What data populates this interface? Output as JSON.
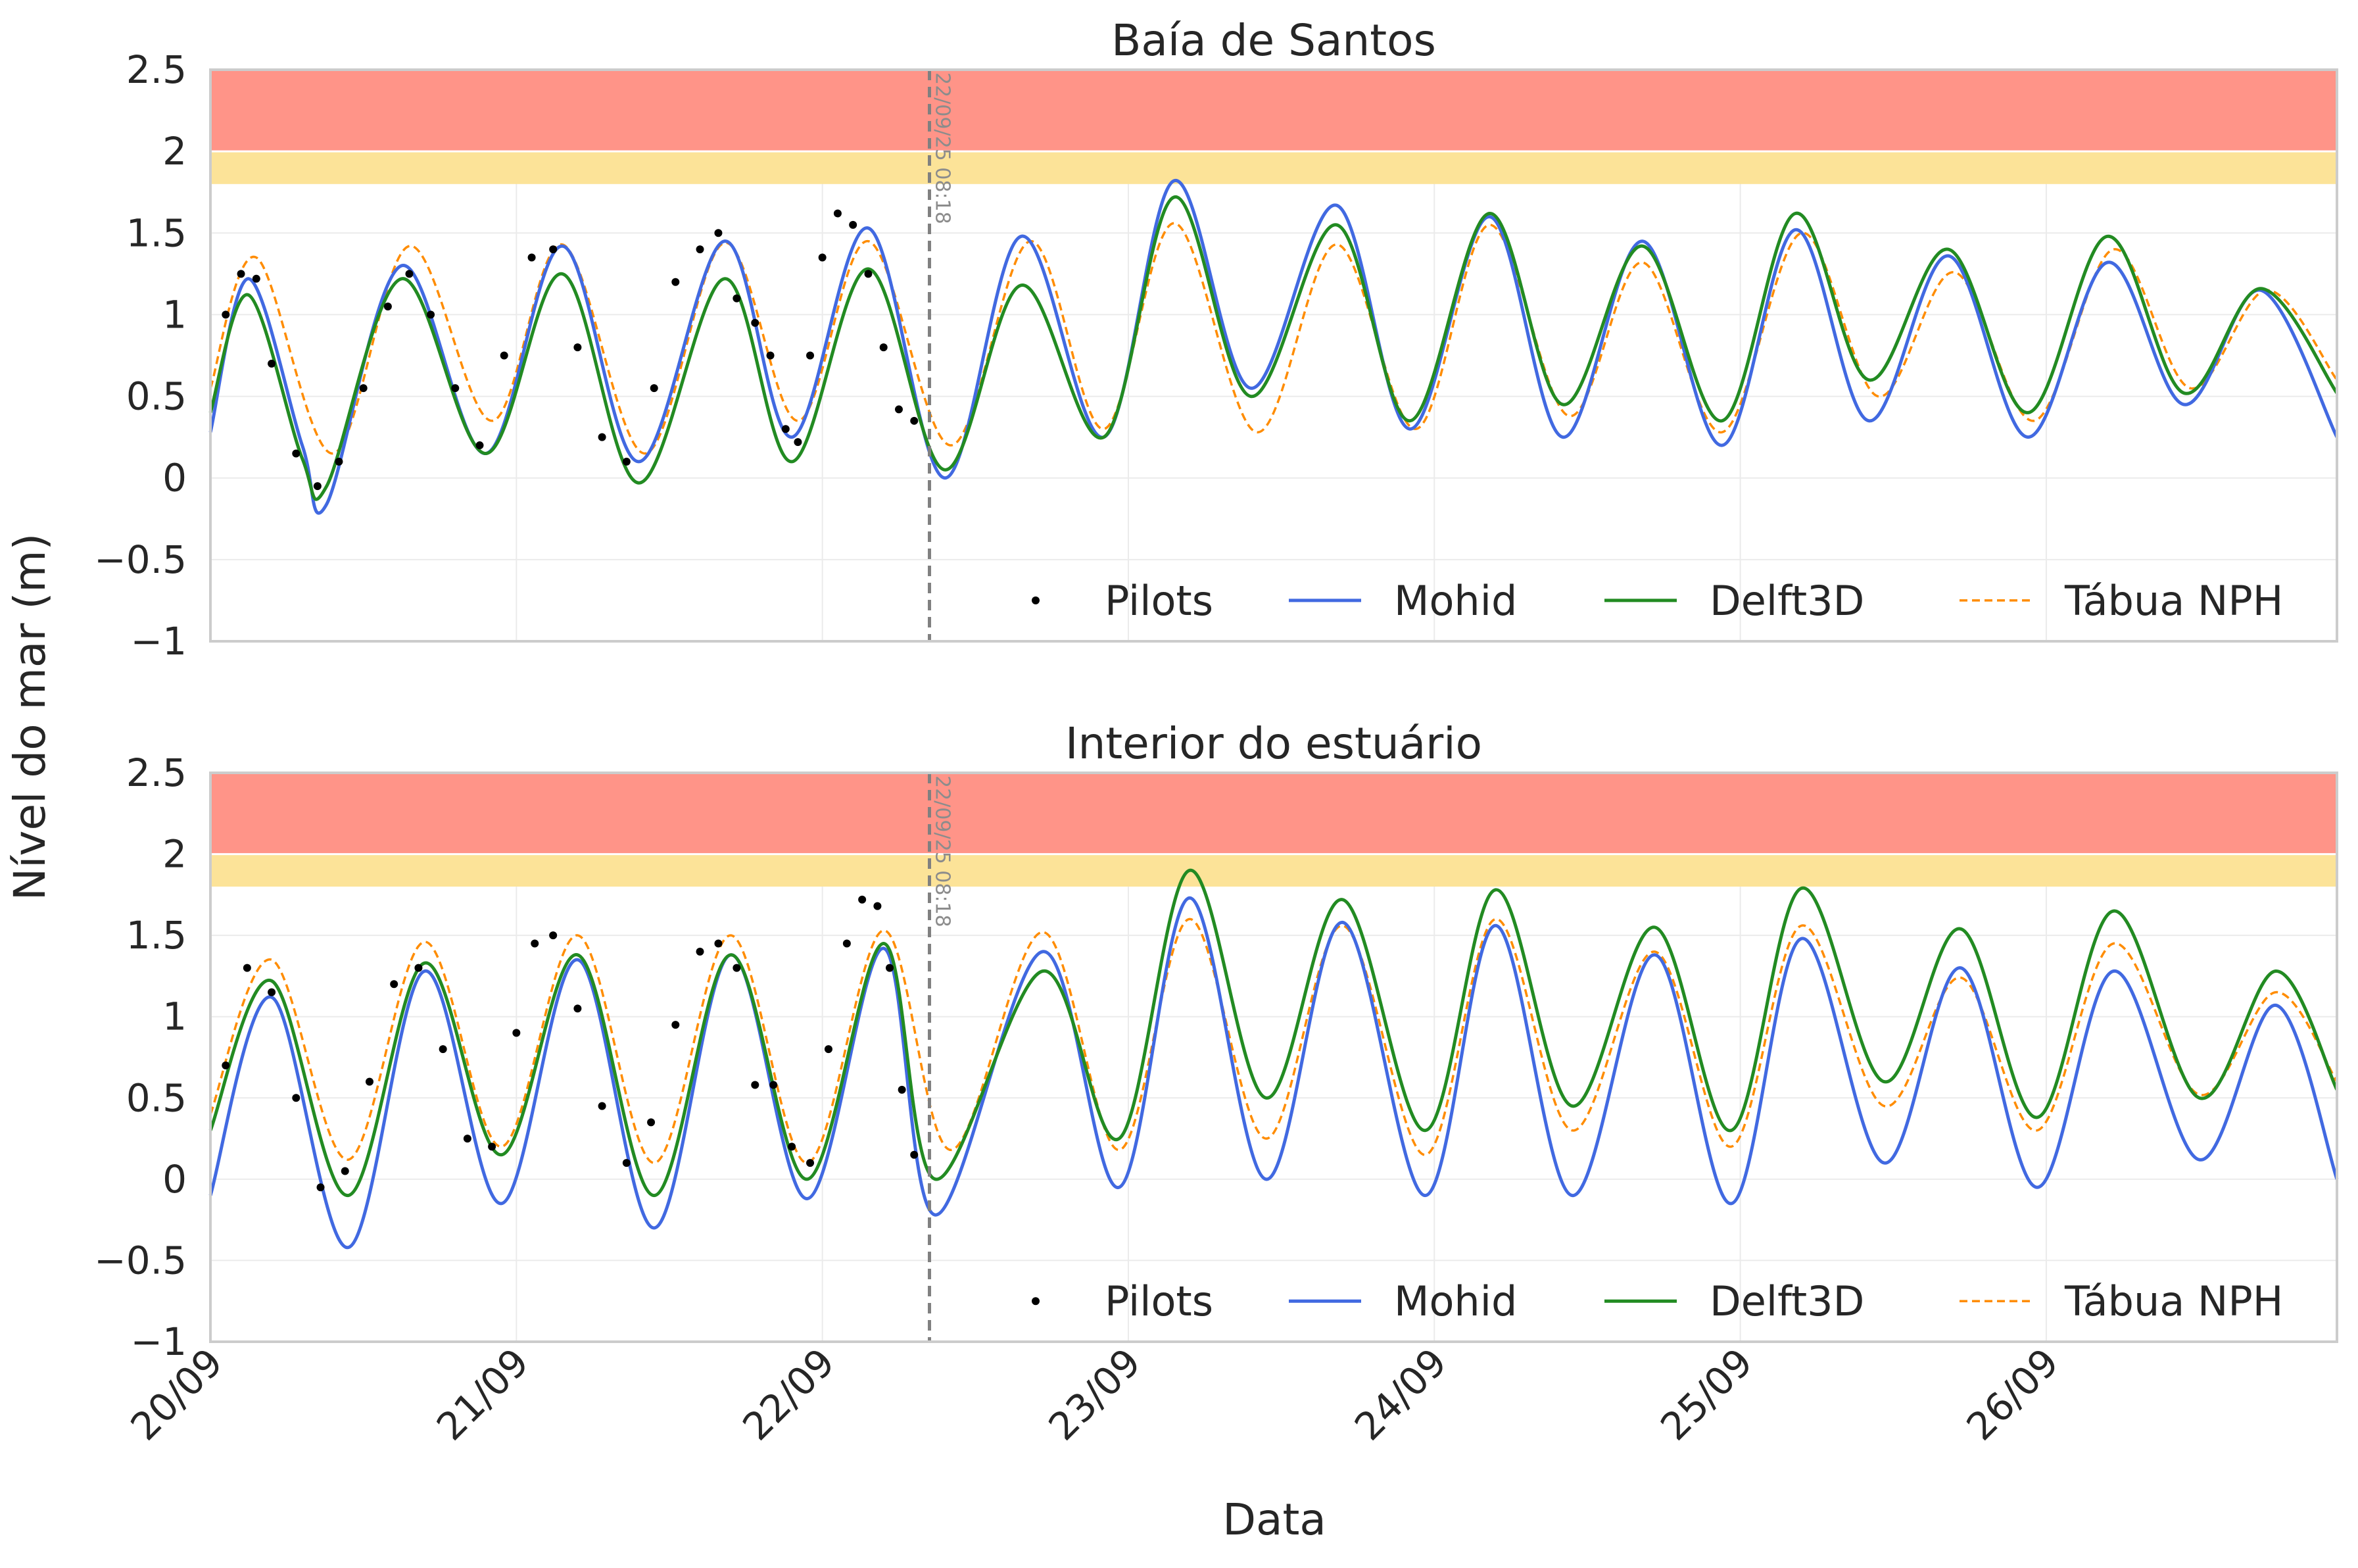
{
  "figure": {
    "ylabel": "Nível do mar (m)",
    "xlabel": "Data",
    "x_ticks": [
      "20/09",
      "21/09",
      "22/09",
      "23/09",
      "24/09",
      "25/09",
      "26/09"
    ],
    "colors": {
      "pilots": "#000000",
      "mohid": "#4169e1",
      "delft3d": "#228b22",
      "tabua": "#ff8c00",
      "band_red": "#ff9488",
      "band_yellow": "#fce398",
      "grid": "#ebebeb",
      "frame": "#cccccc",
      "vline": "#808080"
    },
    "legend": [
      {
        "key": "pilots",
        "label": "Pilots",
        "style": "point"
      },
      {
        "key": "mohid",
        "label": "Mohid",
        "style": "line"
      },
      {
        "key": "delft3d",
        "label": "Delft3D",
        "style": "line"
      },
      {
        "key": "tabua",
        "label": "Tábua NPH",
        "style": "dashed"
      }
    ]
  },
  "chart_data": [
    {
      "type": "line",
      "title": "Baía de Santos",
      "xlabel": "Data",
      "ylabel": "Nível do mar (m)",
      "ylim": [
        -1,
        2.5
      ],
      "y_ticks": [
        "−1",
        "−0.5",
        "0",
        "0.5",
        "1",
        "1.5",
        "2",
        "2.5"
      ],
      "y_tick_values": [
        -1,
        -0.5,
        0,
        0.5,
        1,
        1.5,
        2,
        2.5
      ],
      "xlim_days": [
        20.0,
        26.95
      ],
      "grid": true,
      "legend_position": "lower-right",
      "bands": [
        {
          "from": 2.0,
          "to": 2.5,
          "color": "#ff9488"
        },
        {
          "from": 1.8,
          "to": 2.0,
          "color": "#fce398"
        }
      ],
      "vline": {
        "day": 22.35,
        "label": "22/09/25 08:18"
      },
      "series": [
        {
          "name": "Mohid",
          "key": "mohid",
          "x": [
            20.0,
            20.125,
            20.3,
            20.38,
            20.625,
            20.9,
            21.15,
            21.4,
            21.68,
            21.9,
            22.15,
            22.4,
            22.65,
            22.92,
            23.15,
            23.4,
            23.68,
            23.92,
            24.18,
            24.42,
            24.68,
            24.94,
            25.18,
            25.42,
            25.68,
            25.94,
            26.2,
            26.45,
            26.7,
            26.95
          ],
          "y": [
            0.28,
            1.22,
            0.2,
            -0.16,
            1.3,
            0.15,
            1.42,
            0.1,
            1.45,
            0.25,
            1.53,
            0.0,
            1.48,
            0.25,
            1.82,
            0.55,
            1.67,
            0.3,
            1.6,
            0.25,
            1.45,
            0.2,
            1.52,
            0.35,
            1.36,
            0.25,
            1.32,
            0.45,
            1.15,
            0.25
          ]
        },
        {
          "name": "Delft3D",
          "key": "delft3d",
          "x": [
            20.0,
            20.125,
            20.3,
            20.38,
            20.625,
            20.9,
            21.15,
            21.4,
            21.68,
            21.9,
            22.15,
            22.4,
            22.65,
            22.92,
            23.15,
            23.4,
            23.68,
            23.92,
            24.18,
            24.42,
            24.68,
            24.94,
            25.18,
            25.42,
            25.68,
            25.94,
            26.2,
            26.45,
            26.7,
            26.95
          ],
          "y": [
            0.4,
            1.12,
            0.12,
            -0.05,
            1.22,
            0.15,
            1.25,
            -0.03,
            1.22,
            0.1,
            1.28,
            0.05,
            1.18,
            0.25,
            1.72,
            0.5,
            1.55,
            0.35,
            1.62,
            0.45,
            1.42,
            0.35,
            1.62,
            0.6,
            1.4,
            0.4,
            1.48,
            0.52,
            1.16,
            0.52
          ]
        },
        {
          "name": "Tábua NPH",
          "key": "tabua",
          "x": [
            20.0,
            20.15,
            20.4,
            20.65,
            20.92,
            21.15,
            21.42,
            21.68,
            21.92,
            22.15,
            22.42,
            22.68,
            22.92,
            23.15,
            23.42,
            23.68,
            23.94,
            24.18,
            24.44,
            24.68,
            24.94,
            25.2,
            25.45,
            25.7,
            25.96,
            26.22,
            26.47,
            26.72,
            26.95
          ],
          "y": [
            0.55,
            1.35,
            0.15,
            1.42,
            0.35,
            1.43,
            0.15,
            1.44,
            0.35,
            1.45,
            0.2,
            1.45,
            0.3,
            1.56,
            0.28,
            1.43,
            0.3,
            1.55,
            0.38,
            1.32,
            0.28,
            1.5,
            0.5,
            1.26,
            0.35,
            1.4,
            0.55,
            1.15,
            0.6
          ]
        },
        {
          "name": "Pilots",
          "key": "pilots",
          "x": [
            20.05,
            20.1,
            20.15,
            20.2,
            20.28,
            20.35,
            20.42,
            20.5,
            20.58,
            20.65,
            20.72,
            20.8,
            20.88,
            20.96,
            21.05,
            21.12,
            21.2,
            21.28,
            21.36,
            21.45,
            21.52,
            21.6,
            21.66,
            21.72,
            21.78,
            21.83,
            21.88,
            21.92,
            21.96,
            22.0,
            22.05,
            22.1,
            22.15,
            22.2,
            22.25,
            22.3
          ],
          "y": [
            1.0,
            1.25,
            1.22,
            0.7,
            0.15,
            -0.05,
            0.1,
            0.55,
            1.05,
            1.25,
            1.0,
            0.55,
            0.2,
            0.75,
            1.35,
            1.4,
            0.8,
            0.25,
            0.1,
            0.55,
            1.2,
            1.4,
            1.5,
            1.1,
            0.95,
            0.75,
            0.3,
            0.22,
            0.75,
            1.35,
            1.62,
            1.55,
            1.25,
            0.8,
            0.42,
            0.35
          ]
        }
      ]
    },
    {
      "type": "line",
      "title": "Interior do estuário",
      "xlabel": "Data",
      "ylabel": "Nível do mar (m)",
      "ylim": [
        -1,
        2.5
      ],
      "y_ticks": [
        "−1",
        "−0.5",
        "0",
        "0.5",
        "1",
        "1.5",
        "2",
        "2.5"
      ],
      "y_tick_values": [
        -1,
        -0.5,
        0,
        0.5,
        1,
        1.5,
        2,
        2.5
      ],
      "xlim_days": [
        20.0,
        26.95
      ],
      "grid": true,
      "legend_position": "lower-right",
      "bands": [
        {
          "from": 2.0,
          "to": 2.5,
          "color": "#ff9488"
        },
        {
          "from": 1.8,
          "to": 2.0,
          "color": "#fce398"
        }
      ],
      "vline": {
        "day": 22.35,
        "label": "22/09/25 08:18"
      },
      "series": [
        {
          "name": "Mohid",
          "key": "mohid",
          "x": [
            20.0,
            20.2,
            20.45,
            20.7,
            20.95,
            21.2,
            21.45,
            21.7,
            21.95,
            22.2,
            22.37,
            22.72,
            22.97,
            23.2,
            23.45,
            23.7,
            23.97,
            24.2,
            24.45,
            24.72,
            24.97,
            25.2,
            25.47,
            25.72,
            25.97,
            26.22,
            26.5,
            26.75,
            26.95
          ],
          "y": [
            -0.1,
            1.12,
            -0.42,
            1.28,
            -0.15,
            1.35,
            -0.3,
            1.38,
            -0.12,
            1.42,
            -0.22,
            1.4,
            -0.05,
            1.73,
            0.0,
            1.58,
            -0.1,
            1.56,
            -0.1,
            1.38,
            -0.15,
            1.48,
            0.1,
            1.3,
            -0.05,
            1.28,
            0.12,
            1.07,
            0.0
          ]
        },
        {
          "name": "Delft3D",
          "key": "delft3d",
          "x": [
            20.0,
            20.2,
            20.45,
            20.7,
            20.95,
            21.2,
            21.45,
            21.7,
            21.95,
            22.2,
            22.37,
            22.72,
            22.97,
            23.2,
            23.45,
            23.7,
            23.97,
            24.2,
            24.45,
            24.72,
            24.97,
            25.2,
            25.47,
            25.72,
            25.97,
            26.22,
            26.5,
            26.75,
            26.95
          ],
          "y": [
            0.3,
            1.22,
            -0.1,
            1.33,
            0.15,
            1.38,
            -0.1,
            1.38,
            0.0,
            1.45,
            0.0,
            1.28,
            0.25,
            1.9,
            0.5,
            1.72,
            0.3,
            1.78,
            0.45,
            1.55,
            0.3,
            1.79,
            0.6,
            1.54,
            0.38,
            1.65,
            0.5,
            1.28,
            0.55
          ]
        },
        {
          "name": "Tábua NPH",
          "key": "tabua",
          "x": [
            20.0,
            20.2,
            20.45,
            20.7,
            20.95,
            21.2,
            21.45,
            21.7,
            21.95,
            22.2,
            22.42,
            22.72,
            22.97,
            23.2,
            23.45,
            23.7,
            23.97,
            24.2,
            24.45,
            24.72,
            24.97,
            25.2,
            25.47,
            25.72,
            25.97,
            26.22,
            26.5,
            26.75,
            26.95
          ],
          "y": [
            0.4,
            1.35,
            0.12,
            1.46,
            0.2,
            1.5,
            0.1,
            1.5,
            0.1,
            1.53,
            0.18,
            1.52,
            0.18,
            1.6,
            0.25,
            1.56,
            0.15,
            1.6,
            0.3,
            1.4,
            0.2,
            1.56,
            0.45,
            1.24,
            0.3,
            1.45,
            0.52,
            1.15,
            0.6
          ]
        },
        {
          "name": "Pilots",
          "key": "pilots",
          "x": [
            20.05,
            20.12,
            20.2,
            20.28,
            20.36,
            20.44,
            20.52,
            20.6,
            20.68,
            20.76,
            20.84,
            20.92,
            21.0,
            21.06,
            21.12,
            21.2,
            21.28,
            21.36,
            21.44,
            21.52,
            21.6,
            21.66,
            21.72,
            21.78,
            21.84,
            21.9,
            21.96,
            22.02,
            22.08,
            22.13,
            22.18,
            22.22,
            22.26,
            22.3
          ],
          "y": [
            0.7,
            1.3,
            1.15,
            0.5,
            -0.05,
            0.05,
            0.6,
            1.2,
            1.3,
            0.8,
            0.25,
            0.2,
            0.9,
            1.45,
            1.5,
            1.05,
            0.45,
            0.1,
            0.35,
            0.95,
            1.4,
            1.45,
            1.3,
            0.58,
            0.58,
            0.2,
            0.1,
            0.8,
            1.45,
            1.72,
            1.68,
            1.3,
            0.55,
            0.15
          ]
        }
      ]
    }
  ]
}
